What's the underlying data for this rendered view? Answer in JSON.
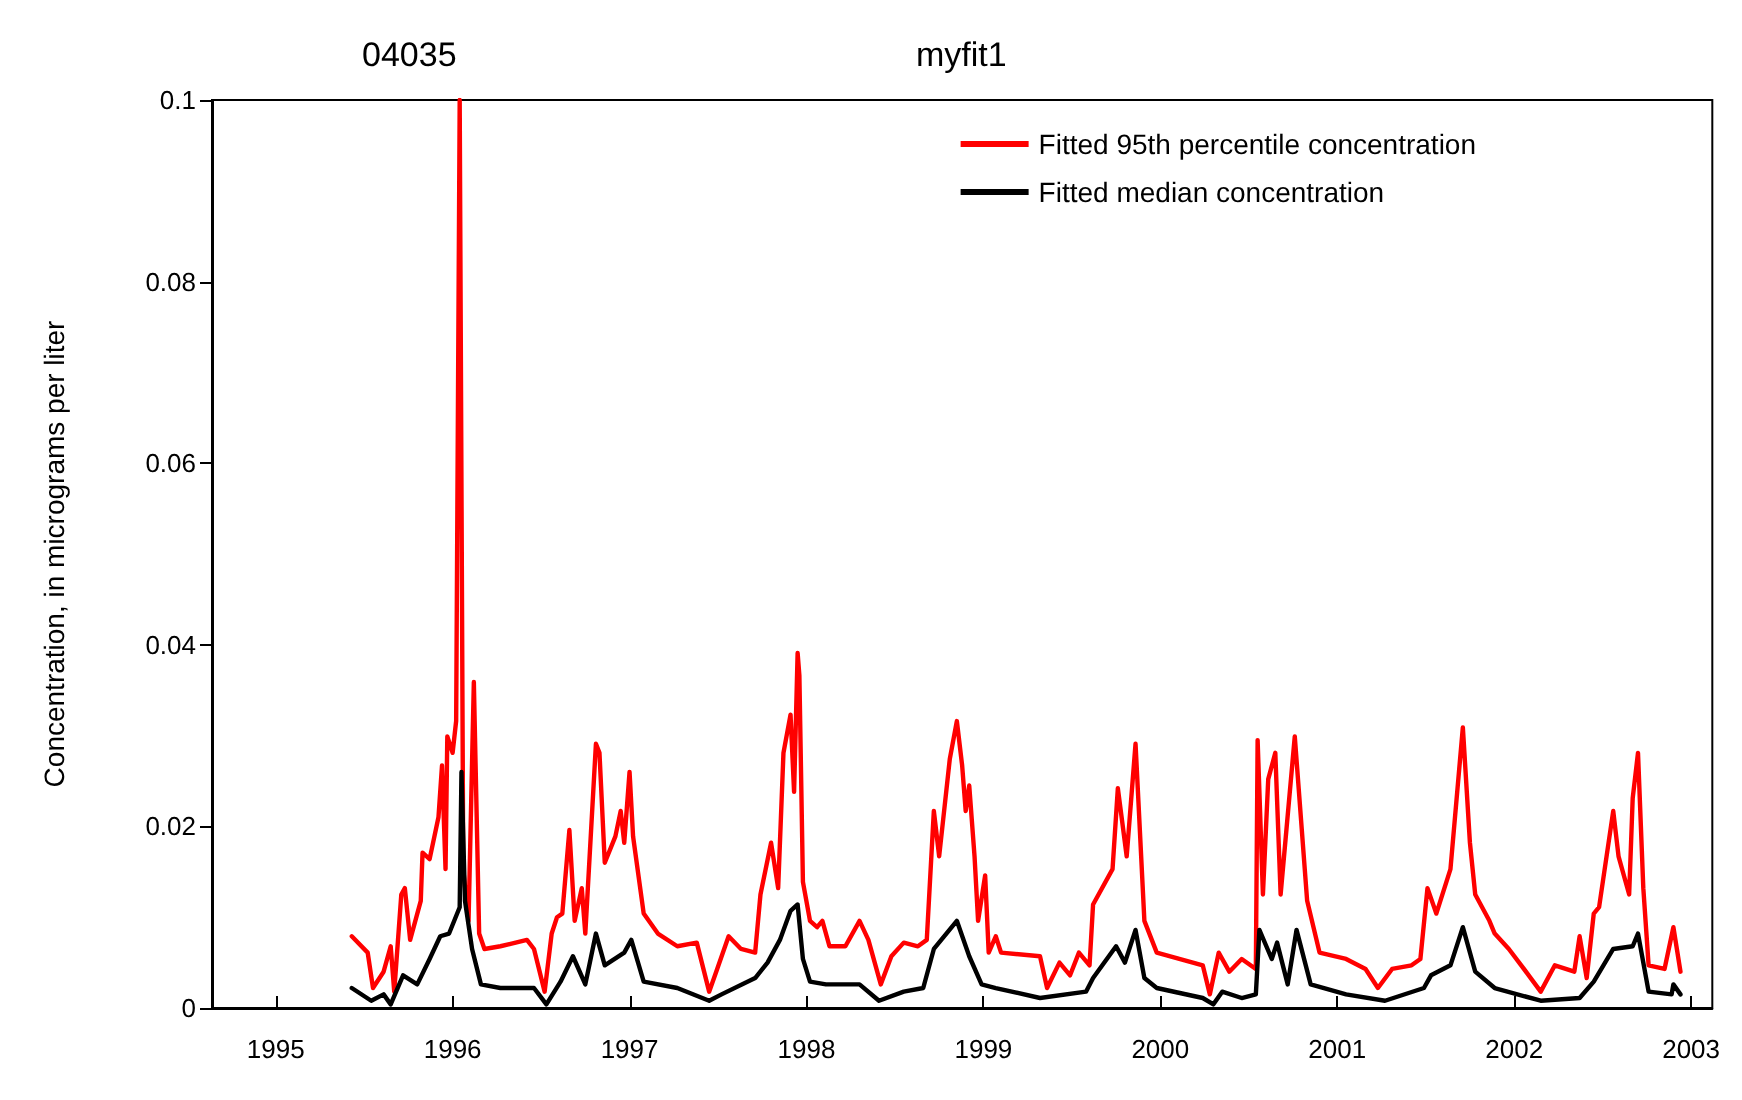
{
  "chart_data": {
    "type": "line",
    "title": "myfit1",
    "subtitle": "04035",
    "ylabel": "Concentration, in micrograms per liter",
    "xlim": [
      1994.64,
      2003.12
    ],
    "xticks": [
      1995,
      1996,
      1997,
      1998,
      1999,
      2000,
      2001,
      2002,
      2003
    ],
    "ylim": [
      0,
      0.1
    ],
    "yticks": [
      0,
      0.02,
      0.04,
      0.06,
      0.08,
      0.1
    ],
    "grid": false,
    "legend": "top right",
    "marker": "none",
    "line_style": "solid",
    "series": [
      {
        "name": "Fitted 95th percentile concentration",
        "color": "#ff0000",
        "x": [
          1995.43,
          1995.52,
          1995.55,
          1995.61,
          1995.65,
          1995.67,
          1995.71,
          1995.73,
          1995.76,
          1995.82,
          1995.83,
          1995.87,
          1995.92,
          1995.94,
          1995.96,
          1995.97,
          1996.0,
          1996.02,
          1996.04,
          1996.06,
          1996.09,
          1996.12,
          1996.15,
          1996.18,
          1996.27,
          1996.42,
          1996.46,
          1996.52,
          1996.56,
          1996.59,
          1996.62,
          1996.66,
          1996.69,
          1996.73,
          1996.75,
          1996.81,
          1996.83,
          1996.86,
          1996.92,
          1996.95,
          1996.97,
          1997.0,
          1997.02,
          1997.08,
          1997.16,
          1997.27,
          1997.38,
          1997.45,
          1997.49,
          1997.56,
          1997.63,
          1997.71,
          1997.74,
          1997.8,
          1997.84,
          1997.87,
          1997.91,
          1997.93,
          1997.95,
          1997.96,
          1997.98,
          1998.02,
          1998.06,
          1998.09,
          1998.13,
          1998.22,
          1998.3,
          1998.35,
          1998.42,
          1998.48,
          1998.55,
          1998.63,
          1998.68,
          1998.72,
          1998.75,
          1998.81,
          1998.85,
          1998.88,
          1998.9,
          1998.92,
          1998.95,
          1998.97,
          1999.01,
          1999.03,
          1999.07,
          1999.1,
          1999.32,
          1999.36,
          1999.43,
          1999.49,
          1999.54,
          1999.6,
          1999.62,
          1999.73,
          1999.76,
          1999.81,
          1999.86,
          1999.91,
          1999.98,
          2000.24,
          2000.28,
          2000.33,
          2000.39,
          2000.46,
          2000.54,
          2000.55,
          2000.58,
          2000.61,
          2000.65,
          2000.68,
          2000.76,
          2000.83,
          2000.9,
          2001.05,
          2001.16,
          2001.23,
          2001.31,
          2001.42,
          2001.47,
          2001.51,
          2001.56,
          2001.64,
          2001.71,
          2001.75,
          2001.78,
          2001.86,
          2001.89,
          2001.97,
          2002.04,
          2002.15,
          2002.23,
          2002.34,
          2002.37,
          2002.41,
          2002.45,
          2002.48,
          2002.56,
          2002.59,
          2002.65,
          2002.67,
          2002.7,
          2002.73,
          2002.76,
          2002.85,
          2002.9,
          2002.94
        ],
        "values": [
          0.0079,
          0.0061,
          0.0022,
          0.004,
          0.0068,
          0.0018,
          0.0125,
          0.0132,
          0.0075,
          0.0118,
          0.0171,
          0.0164,
          0.021,
          0.0267,
          0.0153,
          0.0299,
          0.0281,
          0.0316,
          0.1,
          0.0153,
          0.0096,
          0.0359,
          0.0082,
          0.0065,
          0.0068,
          0.0075,
          0.0065,
          0.0018,
          0.0082,
          0.01,
          0.0104,
          0.0196,
          0.0096,
          0.0132,
          0.0082,
          0.0291,
          0.0281,
          0.016,
          0.0189,
          0.0217,
          0.0182,
          0.026,
          0.0189,
          0.0104,
          0.0082,
          0.0068,
          0.0072,
          0.0018,
          0.004,
          0.0079,
          0.0065,
          0.0061,
          0.0125,
          0.0182,
          0.0132,
          0.0281,
          0.0323,
          0.0238,
          0.0391,
          0.0366,
          0.0139,
          0.0096,
          0.0089,
          0.0096,
          0.0068,
          0.0068,
          0.0096,
          0.0075,
          0.0026,
          0.0057,
          0.0072,
          0.0068,
          0.0075,
          0.0217,
          0.0167,
          0.0274,
          0.0316,
          0.0267,
          0.0217,
          0.0245,
          0.0167,
          0.0096,
          0.0146,
          0.0061,
          0.0079,
          0.0061,
          0.0057,
          0.0022,
          0.005,
          0.0036,
          0.0061,
          0.0047,
          0.0114,
          0.0153,
          0.0242,
          0.0167,
          0.0291,
          0.0096,
          0.0061,
          0.0047,
          0.0015,
          0.0061,
          0.004,
          0.0054,
          0.0043,
          0.0295,
          0.0125,
          0.0252,
          0.0281,
          0.0125,
          0.0299,
          0.0118,
          0.0061,
          0.0054,
          0.0043,
          0.0022,
          0.0043,
          0.0047,
          0.0054,
          0.0132,
          0.0104,
          0.0153,
          0.0309,
          0.0182,
          0.0125,
          0.0096,
          0.0082,
          0.0065,
          0.0047,
          0.0018,
          0.0047,
          0.004,
          0.0079,
          0.0033,
          0.0104,
          0.0111,
          0.0217,
          0.0167,
          0.0125,
          0.0231,
          0.0281,
          0.0132,
          0.0047,
          0.0043,
          0.0089,
          0.004
        ]
      },
      {
        "name": "Fitted median concentration",
        "color": "#000000",
        "x": [
          1995.43,
          1995.54,
          1995.61,
          1995.65,
          1995.72,
          1995.8,
          1995.87,
          1995.93,
          1995.98,
          1996.04,
          1996.05,
          1996.07,
          1996.11,
          1996.16,
          1996.27,
          1996.46,
          1996.53,
          1996.61,
          1996.68,
          1996.75,
          1996.81,
          1996.86,
          1996.97,
          1997.01,
          1997.08,
          1997.27,
          1997.45,
          1997.52,
          1997.71,
          1997.78,
          1997.85,
          1997.91,
          1997.95,
          1997.98,
          1998.02,
          1998.11,
          1998.3,
          1998.41,
          1998.55,
          1998.66,
          1998.72,
          1998.85,
          1998.92,
          1998.99,
          1999.07,
          1999.32,
          1999.58,
          1999.62,
          1999.75,
          1999.8,
          1999.86,
          1999.91,
          1999.98,
          2000.24,
          2000.3,
          2000.35,
          2000.46,
          2000.54,
          2000.56,
          2000.63,
          2000.66,
          2000.72,
          2000.77,
          2000.85,
          2001.05,
          2001.27,
          2001.49,
          2001.53,
          2001.64,
          2001.71,
          2001.78,
          2001.89,
          2002.15,
          2002.37,
          2002.45,
          2002.56,
          2002.67,
          2002.7,
          2002.76,
          2002.89,
          2002.9,
          2002.94
        ],
        "values": [
          0.0022,
          0.0008,
          0.0015,
          0.0004,
          0.0036,
          0.0026,
          0.0054,
          0.0079,
          0.0082,
          0.0111,
          0.026,
          0.0118,
          0.0065,
          0.0026,
          0.0022,
          0.0022,
          0.0004,
          0.0029,
          0.0057,
          0.0026,
          0.0082,
          0.0047,
          0.0061,
          0.0075,
          0.0029,
          0.0022,
          0.0008,
          0.0015,
          0.0033,
          0.005,
          0.0075,
          0.0107,
          0.0114,
          0.0054,
          0.0029,
          0.0026,
          0.0026,
          0.0008,
          0.0018,
          0.0022,
          0.0065,
          0.0096,
          0.0057,
          0.0026,
          0.0022,
          0.0011,
          0.0018,
          0.0033,
          0.0068,
          0.005,
          0.0086,
          0.0033,
          0.0022,
          0.0011,
          0.0004,
          0.0018,
          0.0011,
          0.0015,
          0.0086,
          0.0054,
          0.0072,
          0.0026,
          0.0086,
          0.0026,
          0.0015,
          0.0008,
          0.0022,
          0.0036,
          0.0047,
          0.0089,
          0.004,
          0.0022,
          0.0008,
          0.0011,
          0.0029,
          0.0065,
          0.0068,
          0.0082,
          0.0018,
          0.0015,
          0.0026,
          0.0015
        ]
      }
    ]
  }
}
